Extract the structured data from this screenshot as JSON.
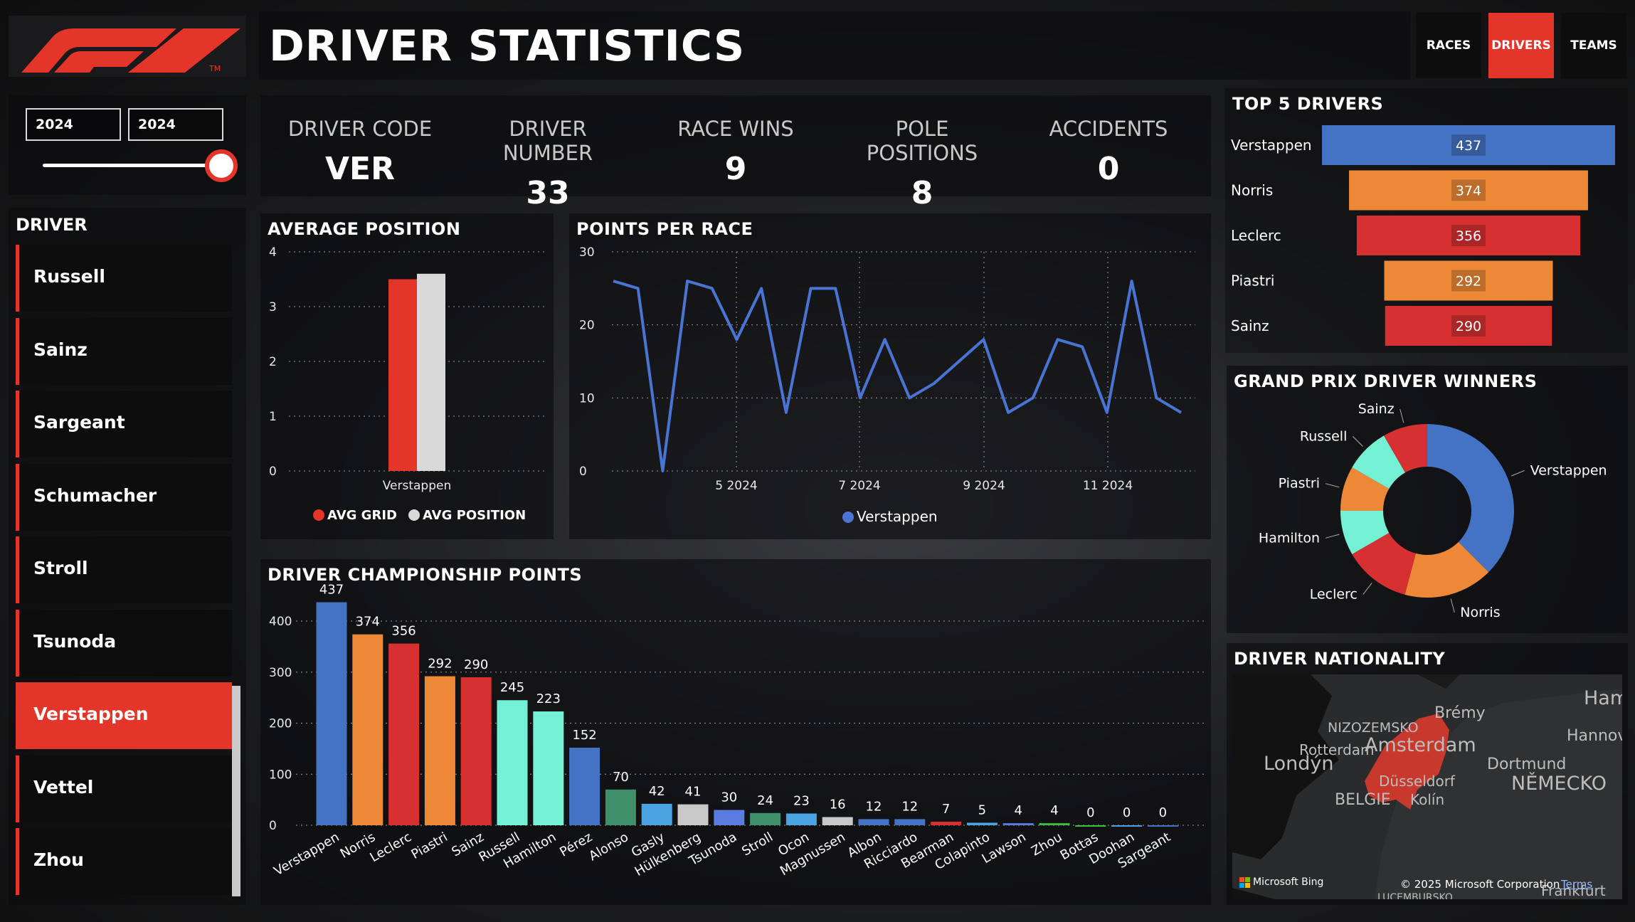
{
  "header": {
    "title": "DRIVER STATISTICS",
    "logo_tm": "TM",
    "nav": [
      {
        "label": "RACES",
        "active": false
      },
      {
        "label": "DRIVERS",
        "active": true
      },
      {
        "label": "TEAMS",
        "active": false
      }
    ]
  },
  "slicer": {
    "year_from": "2024",
    "year_to": "2024"
  },
  "driver_list": {
    "title": "DRIVER",
    "items": [
      "Russell",
      "Sainz",
      "Sargeant",
      "Schumacher",
      "Stroll",
      "Tsunoda",
      "Verstappen",
      "Vettel",
      "Zhou"
    ],
    "selected": "Verstappen"
  },
  "kpis": [
    {
      "label": "DRIVER CODE",
      "value": "VER"
    },
    {
      "label": "DRIVER NUMBER",
      "value": "33"
    },
    {
      "label": "RACE WINS",
      "value": "9"
    },
    {
      "label": "POLE POSITIONS",
      "value": "8"
    },
    {
      "label": "ACCIDENTS",
      "value": "0"
    }
  ],
  "colors": {
    "accent_red": "#e4352a",
    "blue": "#4472c4",
    "orange": "#ed8936",
    "red": "#d63031",
    "mint": "#74f0d4",
    "green": "#3f8f6a",
    "light_blue": "#4aa3e0",
    "grey": "#c8c8c8"
  },
  "avg_position": {
    "title": "AVERAGE POSITION",
    "legend": [
      "AVG GRID",
      "AVG POSITION"
    ],
    "chart_data": {
      "type": "bar",
      "categories": [
        "Verstappen"
      ],
      "series": [
        {
          "name": "AVG GRID",
          "values": [
            3.5
          ],
          "color": "#e4352a"
        },
        {
          "name": "AVG POSITION",
          "values": [
            3.6
          ],
          "color": "#d9d9d9"
        }
      ],
      "yticks": [
        "0",
        "1",
        "2",
        "3",
        "4"
      ],
      "ylim": [
        0,
        4
      ]
    }
  },
  "points_per_race": {
    "title": "POINTS PER RACE",
    "legend": [
      "Verstappen"
    ],
    "chart_data": {
      "type": "line",
      "series": [
        {
          "name": "Verstappen",
          "values": [
            26,
            25,
            0,
            26,
            25,
            18,
            25,
            8,
            25,
            25,
            10,
            18,
            10,
            12,
            15,
            18,
            8,
            10,
            18,
            17,
            8,
            26,
            10,
            8
          ],
          "color": "#4a74d4"
        }
      ],
      "xticks": [
        "5 2024",
        "7 2024",
        "9 2024",
        "11 2024"
      ],
      "yticks": [
        "0",
        "10",
        "20",
        "30"
      ],
      "ylim": [
        0,
        30
      ]
    }
  },
  "championship": {
    "title": "DRIVER CHAMPIONSHIP POINTS",
    "chart_data": {
      "type": "bar",
      "categories": [
        "Verstappen",
        "Norris",
        "Leclerc",
        "Piastri",
        "Sainz",
        "Russell",
        "Hamilton",
        "Pérez",
        "Alonso",
        "Gasly",
        "Hülkenberg",
        "Tsunoda",
        "Stroll",
        "Ocon",
        "Magnussen",
        "Albon",
        "Ricciardo",
        "Bearman",
        "Colapinto",
        "Lawson",
        "Zhou",
        "Bottas",
        "Doohan",
        "Sargeant"
      ],
      "values": [
        437,
        374,
        356,
        292,
        290,
        245,
        223,
        152,
        70,
        42,
        41,
        30,
        24,
        23,
        16,
        12,
        12,
        7,
        5,
        4,
        4,
        0,
        0,
        0
      ],
      "value_labels": [
        "437",
        "374",
        "356",
        "292",
        "290",
        "245",
        "223",
        "152",
        "70",
        "42",
        "41",
        "30",
        "24",
        "23",
        "16",
        "12",
        "12",
        "7",
        "5",
        "4",
        "4",
        "0",
        "0",
        "0"
      ],
      "colors": [
        "#4472c4",
        "#ed8936",
        "#d63031",
        "#ed8936",
        "#d63031",
        "#74f0d4",
        "#74f0d4",
        "#4472c4",
        "#3f8f6a",
        "#4aa3e0",
        "#c8c8c8",
        "#5b7be0",
        "#3f8f6a",
        "#4aa3e0",
        "#c8c8c8",
        "#4472c4",
        "#4472c4",
        "#d63031",
        "#4aa3e0",
        "#5b7be0",
        "#3fbf3f",
        "#3fbf3f",
        "#4aa3e0",
        "#4472c4"
      ],
      "yticks": [
        "0",
        "100",
        "200",
        "300",
        "400"
      ],
      "ylim": [
        0,
        460
      ]
    }
  },
  "top5": {
    "title": "TOP 5 DRIVERS",
    "chart_data": {
      "type": "bar",
      "categories": [
        "Verstappen",
        "Norris",
        "Leclerc",
        "Piastri",
        "Sainz"
      ],
      "values": [
        437,
        374,
        356,
        292,
        290
      ],
      "value_labels": [
        "437",
        "374",
        "356",
        "292",
        "290"
      ],
      "colors": [
        "#4472c4",
        "#ed8936",
        "#d63031",
        "#ed8936",
        "#d63031"
      ]
    }
  },
  "gp_winners": {
    "title": "GRAND PRIX DRIVER WINNERS",
    "chart_data": {
      "type": "pie",
      "labels": [
        "Verstappen",
        "Norris",
        "Leclerc",
        "Hamilton",
        "Piastri",
        "Russell",
        "Sainz"
      ],
      "values": [
        9,
        4,
        3,
        2,
        2,
        2,
        2
      ],
      "colors": [
        "#4472c4",
        "#ed8936",
        "#d63031",
        "#74f0d4",
        "#ed8936",
        "#74f0d4",
        "#d63031"
      ]
    }
  },
  "nationality": {
    "title": "DRIVER NATIONALITY",
    "labels": [
      "Brémy",
      "Hamb",
      "NIZOZEMSKO",
      "Hannove",
      "Rotterdam",
      "Amsterdam",
      "Londýn",
      "Dortmund",
      "Düsseldorf",
      "NĚMECKO",
      "BELGIE",
      "Kolín",
      "Frankfurt",
      "LUCEMBURSKO"
    ],
    "attribution": "Microsoft Bing",
    "copyright": "© 2025 Microsoft Corporation",
    "terms": "Terms"
  }
}
